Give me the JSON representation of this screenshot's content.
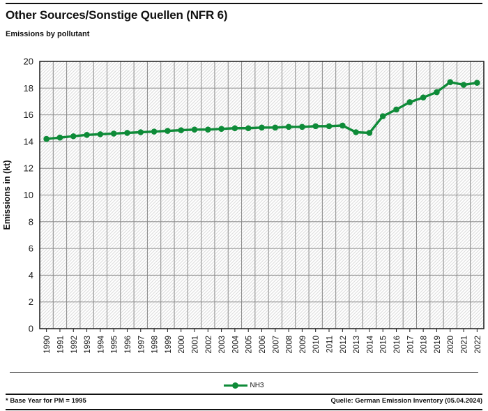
{
  "page": {
    "title": "Other Sources/Sonstige Quellen (NFR 6)",
    "subtitle": "Emissions by pollutant"
  },
  "footer": {
    "note": "* Base Year for PM = 1995",
    "source": "Quelle: German Emission Inventory (05.04.2024)"
  },
  "chart_data": {
    "type": "line",
    "title": "Other Sources/Sonstige Quellen (NFR 6)",
    "subtitle": "Emissions by pollutant",
    "ylabel": "Emissions in (kt)",
    "ylim": [
      0,
      20
    ],
    "ytick_step": 2,
    "grid": true,
    "plot_background": "hatched",
    "legend_position": "bottom",
    "categories": [
      "1990",
      "1991",
      "1992",
      "1993",
      "1994",
      "1995",
      "1996",
      "1997",
      "1998",
      "1999",
      "2000",
      "2001",
      "2002",
      "2003",
      "2004",
      "2005",
      "2006",
      "2007",
      "2008",
      "2009",
      "2010",
      "2011",
      "2012",
      "2013",
      "2014",
      "2015",
      "2016",
      "2017",
      "2018",
      "2019",
      "2020",
      "2021",
      "2022"
    ],
    "series": [
      {
        "name": "NH3",
        "color": "#0E8B38",
        "values": [
          14.2,
          14.3,
          14.4,
          14.5,
          14.55,
          14.6,
          14.65,
          14.7,
          14.75,
          14.8,
          14.85,
          14.9,
          14.9,
          14.95,
          15.0,
          15.0,
          15.05,
          15.05,
          15.1,
          15.1,
          15.15,
          15.15,
          15.2,
          14.7,
          14.65,
          15.9,
          16.4,
          16.95,
          17.3,
          17.7,
          18.45,
          18.25,
          18.4
        ]
      }
    ],
    "colors": {
      "grid": "#8A8A8A",
      "plot_border": "#1A1A1A",
      "hatch": "#D9D9D9",
      "tick_text": "#1A1A1A"
    }
  }
}
